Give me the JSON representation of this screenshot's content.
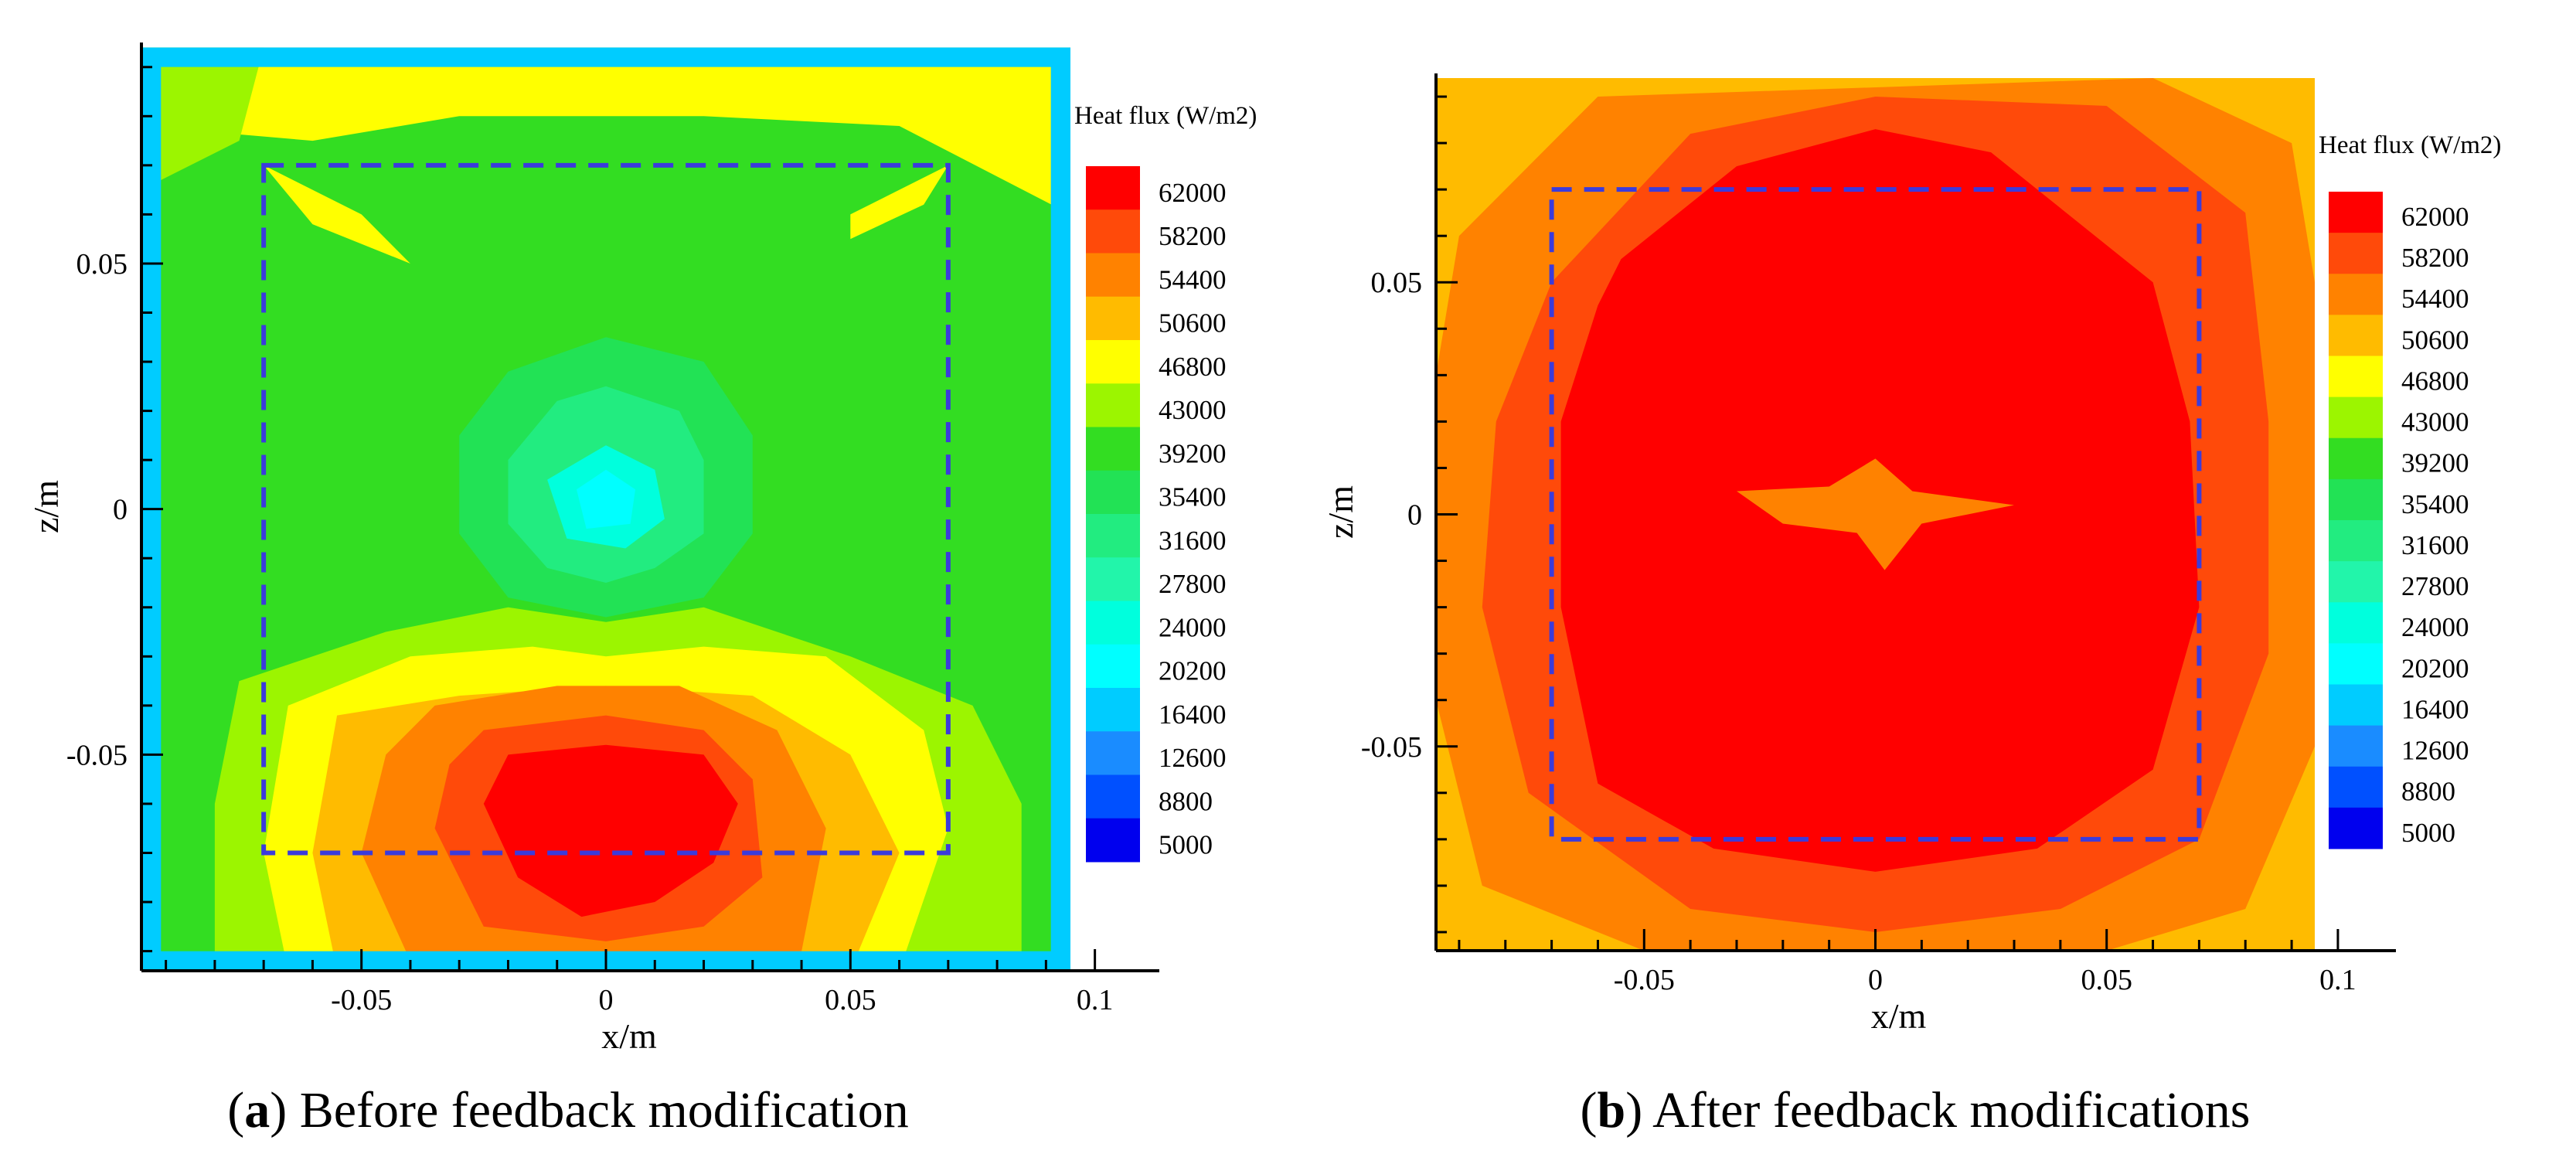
{
  "chart_data": [
    {
      "type": "heatmap",
      "panel": "a",
      "caption_letter": "a",
      "caption_text": " Before feedback modification",
      "xlabel": "x/m",
      "ylabel": "z/m",
      "xlim": [
        -0.095,
        0.112
      ],
      "ylim": [
        -0.094,
        0.095
      ],
      "field_extent": {
        "x": [
          -0.095,
          0.095
        ],
        "z": [
          -0.094,
          0.094
        ]
      },
      "xticks": [
        -0.05,
        0,
        0.05,
        0.1
      ],
      "xtick_labels": [
        "-0.05",
        "0",
        "0.05",
        "0.1"
      ],
      "yticks": [
        -0.05,
        0,
        0.05
      ],
      "ytick_labels": [
        "-0.05",
        "0",
        "0.05"
      ],
      "legend_title": "Heat flux (W/m2)",
      "dashed_box": {
        "x": [
          -0.07,
          0.07
        ],
        "z": [
          -0.07,
          0.07
        ],
        "color": "#3b3bdc"
      },
      "background_level": 39200,
      "contour_patches": [
        {
          "level": 46800,
          "points": [
            [
              -0.095,
              0.094
            ],
            [
              0.095,
              0.094
            ],
            [
              0.095,
              0.06
            ],
            [
              0.06,
              0.078
            ],
            [
              0.02,
              0.08
            ],
            [
              -0.03,
              0.08
            ],
            [
              -0.06,
              0.075
            ],
            [
              -0.095,
              0.078
            ]
          ]
        },
        {
          "level": 46800,
          "points": [
            [
              -0.07,
              0.07
            ],
            [
              -0.05,
              0.06
            ],
            [
              -0.04,
              0.05
            ],
            [
              -0.06,
              0.058
            ]
          ]
        },
        {
          "level": 46800,
          "points": [
            [
              0.07,
              0.07
            ],
            [
              0.05,
              0.06
            ],
            [
              0.05,
              0.055
            ],
            [
              0.065,
              0.062
            ]
          ]
        },
        {
          "level": 43000,
          "points": [
            [
              -0.095,
              0.065
            ],
            [
              -0.095,
              0.094
            ],
            [
              -0.07,
              0.094
            ],
            [
              -0.075,
              0.075
            ]
          ]
        },
        {
          "level": 43000,
          "points": [
            [
              -0.075,
              -0.035
            ],
            [
              -0.045,
              -0.025
            ],
            [
              -0.02,
              -0.02
            ],
            [
              0,
              -0.023
            ],
            [
              0.02,
              -0.02
            ],
            [
              0.05,
              -0.03
            ],
            [
              0.075,
              -0.04
            ],
            [
              0.085,
              -0.06
            ],
            [
              0.085,
              -0.094
            ],
            [
              -0.08,
              -0.094
            ],
            [
              -0.08,
              -0.06
            ]
          ]
        },
        {
          "level": 46800,
          "points": [
            [
              -0.065,
              -0.04
            ],
            [
              -0.04,
              -0.03
            ],
            [
              -0.015,
              -0.028
            ],
            [
              0,
              -0.03
            ],
            [
              0.02,
              -0.028
            ],
            [
              0.045,
              -0.03
            ],
            [
              0.065,
              -0.045
            ],
            [
              0.07,
              -0.065
            ],
            [
              0.06,
              -0.094
            ],
            [
              -0.065,
              -0.094
            ],
            [
              -0.07,
              -0.07
            ]
          ]
        },
        {
          "level": 50600,
          "points": [
            [
              -0.055,
              -0.042
            ],
            [
              -0.03,
              -0.038
            ],
            [
              0,
              -0.036
            ],
            [
              0.03,
              -0.038
            ],
            [
              0.05,
              -0.05
            ],
            [
              0.06,
              -0.07
            ],
            [
              0.05,
              -0.094
            ],
            [
              -0.055,
              -0.094
            ],
            [
              -0.06,
              -0.07
            ]
          ]
        },
        {
          "level": 54400,
          "points": [
            [
              -0.035,
              -0.04
            ],
            [
              -0.01,
              -0.036
            ],
            [
              0.015,
              -0.036
            ],
            [
              0.035,
              -0.045
            ],
            [
              0.045,
              -0.065
            ],
            [
              0.04,
              -0.09
            ],
            [
              -0.04,
              -0.092
            ],
            [
              -0.05,
              -0.07
            ],
            [
              -0.045,
              -0.05
            ]
          ]
        },
        {
          "level": 58200,
          "points": [
            [
              -0.025,
              -0.045
            ],
            [
              0,
              -0.042
            ],
            [
              0.02,
              -0.045
            ],
            [
              0.03,
              -0.055
            ],
            [
              0.032,
              -0.075
            ],
            [
              0.02,
              -0.085
            ],
            [
              0,
              -0.088
            ],
            [
              -0.025,
              -0.085
            ],
            [
              -0.035,
              -0.065
            ],
            [
              -0.032,
              -0.052
            ]
          ]
        },
        {
          "level": 62000,
          "points": [
            [
              -0.02,
              -0.05
            ],
            [
              0,
              -0.048
            ],
            [
              0.02,
              -0.05
            ],
            [
              0.027,
              -0.06
            ],
            [
              0.022,
              -0.072
            ],
            [
              0.01,
              -0.08
            ],
            [
              -0.005,
              -0.083
            ],
            [
              -0.018,
              -0.075
            ],
            [
              -0.025,
              -0.06
            ]
          ]
        },
        {
          "level": 35400,
          "points": [
            [
              -0.03,
              0.015
            ],
            [
              -0.02,
              0.028
            ],
            [
              0,
              0.035
            ],
            [
              0.02,
              0.03
            ],
            [
              0.03,
              0.015
            ],
            [
              0.03,
              -0.005
            ],
            [
              0.02,
              -0.018
            ],
            [
              0,
              -0.022
            ],
            [
              -0.02,
              -0.018
            ],
            [
              -0.03,
              -0.005
            ]
          ]
        },
        {
          "level": 31600,
          "points": [
            [
              -0.02,
              0.01
            ],
            [
              -0.01,
              0.022
            ],
            [
              0,
              0.025
            ],
            [
              0.015,
              0.02
            ],
            [
              0.02,
              0.01
            ],
            [
              0.02,
              -0.005
            ],
            [
              0.01,
              -0.012
            ],
            [
              0,
              -0.015
            ],
            [
              -0.012,
              -0.012
            ],
            [
              -0.02,
              -0.003
            ]
          ]
        },
        {
          "level": 24000,
          "points": [
            [
              -0.012,
              0.006
            ],
            [
              0,
              0.013
            ],
            [
              0.01,
              0.008
            ],
            [
              0.012,
              -0.002
            ],
            [
              0.004,
              -0.008
            ],
            [
              -0.008,
              -0.006
            ]
          ]
        },
        {
          "level": 20200,
          "points": [
            [
              -0.006,
              0.004
            ],
            [
              0,
              0.008
            ],
            [
              0.006,
              0.004
            ],
            [
              0.005,
              -0.003
            ],
            [
              -0.004,
              -0.004
            ]
          ]
        },
        {
          "level": 16400,
          "frame": true,
          "inset": 0.004
        }
      ],
      "colorbar": {
        "levels": [
          62000,
          58200,
          54400,
          50600,
          46800,
          43000,
          39200,
          35400,
          31600,
          27800,
          24000,
          20200,
          16400,
          12600,
          8800,
          5000
        ]
      }
    },
    {
      "type": "heatmap",
      "panel": "b",
      "caption_letter": "b",
      "caption_text": " After feedback modifications",
      "xlabel": "x/m",
      "ylabel": "z/m",
      "xlim": [
        -0.095,
        0.112
      ],
      "ylim": [
        -0.094,
        0.095
      ],
      "field_extent": {
        "x": [
          -0.095,
          0.095
        ],
        "z": [
          -0.094,
          0.094
        ]
      },
      "xticks": [
        -0.05,
        0,
        0.05,
        0.1
      ],
      "xtick_labels": [
        "-0.05",
        "0",
        "0.05",
        "0.1"
      ],
      "yticks": [
        -0.05,
        0,
        0.05
      ],
      "ytick_labels": [
        "-0.05",
        "0",
        "0.05"
      ],
      "legend_title": "Heat flux (W/m2)",
      "dashed_box": {
        "x": [
          -0.07,
          0.07
        ],
        "z": [
          -0.07,
          0.07
        ],
        "color": "#3b3bdc"
      },
      "background_level": 50600,
      "contour_patches": [
        {
          "level": 54400,
          "points": [
            [
              -0.09,
              0.06
            ],
            [
              -0.06,
              0.09
            ],
            [
              0.06,
              0.094
            ],
            [
              0.09,
              0.08
            ],
            [
              0.095,
              0.05
            ],
            [
              0.095,
              -0.05
            ],
            [
              0.08,
              -0.085
            ],
            [
              0.05,
              -0.094
            ],
            [
              -0.05,
              -0.094
            ],
            [
              -0.085,
              -0.08
            ],
            [
              -0.095,
              -0.04
            ],
            [
              -0.095,
              0.03
            ]
          ]
        },
        {
          "level": 58200,
          "points": [
            [
              -0.07,
              0.05
            ],
            [
              -0.04,
              0.082
            ],
            [
              0,
              0.09
            ],
            [
              0.05,
              0.088
            ],
            [
              0.08,
              0.065
            ],
            [
              0.085,
              0.02
            ],
            [
              0.085,
              -0.03
            ],
            [
              0.07,
              -0.07
            ],
            [
              0.04,
              -0.085
            ],
            [
              0,
              -0.09
            ],
            [
              -0.04,
              -0.085
            ],
            [
              -0.075,
              -0.06
            ],
            [
              -0.085,
              -0.02
            ],
            [
              -0.082,
              0.02
            ]
          ]
        },
        {
          "level": 62000,
          "points": [
            [
              -0.055,
              0.055
            ],
            [
              -0.03,
              0.075
            ],
            [
              0,
              0.083
            ],
            [
              0.025,
              0.078
            ],
            [
              0.05,
              0.058
            ],
            [
              0.06,
              0.05
            ],
            [
              0.068,
              0.02
            ],
            [
              0.07,
              -0.02
            ],
            [
              0.06,
              -0.055
            ],
            [
              0.035,
              -0.072
            ],
            [
              0,
              -0.077
            ],
            [
              -0.035,
              -0.072
            ],
            [
              -0.06,
              -0.058
            ],
            [
              -0.068,
              -0.02
            ],
            [
              -0.068,
              0.02
            ],
            [
              -0.06,
              0.045
            ]
          ]
        },
        {
          "level": 54400,
          "points": [
            [
              -0.03,
              0.005
            ],
            [
              -0.01,
              0.006
            ],
            [
              0,
              0.012
            ],
            [
              0.008,
              0.005
            ],
            [
              0.03,
              0.002
            ],
            [
              0.01,
              -0.002
            ],
            [
              0.002,
              -0.012
            ],
            [
              -0.004,
              -0.004
            ],
            [
              -0.02,
              -0.002
            ]
          ]
        }
      ],
      "colorbar": {
        "levels": [
          62000,
          58200,
          54400,
          50600,
          46800,
          43000,
          39200,
          35400,
          31600,
          27800,
          24000,
          20200,
          16400,
          12600,
          8800,
          5000
        ]
      }
    }
  ],
  "level_colors": {
    "62000": "#ff0000",
    "58200": "#ff4a0a",
    "54400": "#ff8200",
    "50600": "#ffbb00",
    "46800": "#ffff00",
    "43000": "#9cf500",
    "39200": "#33dd22",
    "35400": "#22e255",
    "31600": "#22ec80",
    "27800": "#22f5aa",
    "24000": "#00ffdd",
    "20200": "#00ffff",
    "16400": "#00ccff",
    "12600": "#1a8cff",
    "8800": "#0050ff",
    "5000": "#0000ee"
  }
}
